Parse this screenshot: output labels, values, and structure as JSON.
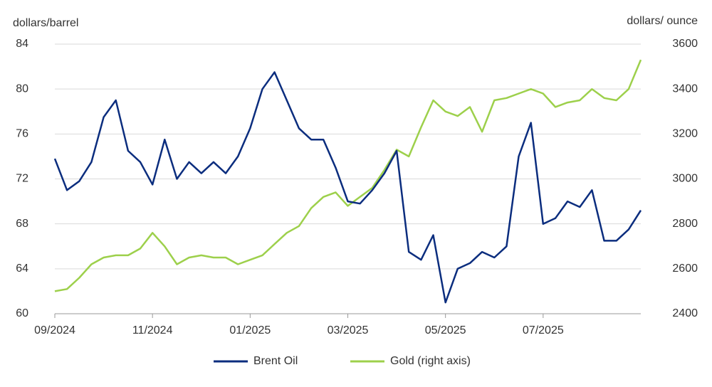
{
  "chart_data": {
    "type": "line",
    "y_label": "dollars/barrel",
    "y2_label": "dollars/ ounce",
    "categories": [
      "09/2024",
      null,
      null,
      null,
      null,
      null,
      null,
      null,
      "11/2024",
      null,
      null,
      null,
      null,
      null,
      null,
      null,
      "01/2025",
      null,
      null,
      null,
      null,
      null,
      null,
      null,
      "03/2025",
      null,
      null,
      null,
      null,
      null,
      null,
      null,
      "05/2025",
      null,
      null,
      null,
      null,
      null,
      null,
      null,
      "07/2025",
      null,
      null,
      null,
      null,
      null,
      null,
      null,
      null
    ],
    "series": [
      {
        "name": "Brent Oil",
        "color": "#0b2d7e",
        "axis": "y",
        "values": [
          73.8,
          71.0,
          71.8,
          73.5,
          77.5,
          79,
          74.5,
          73.5,
          71.5,
          75.5,
          72,
          73.5,
          72.5,
          73.5,
          72.5,
          74,
          76.5,
          80,
          81.5,
          79,
          76.5,
          75.5,
          75.5,
          73,
          70,
          69.8,
          71,
          72.5,
          74.5,
          65.5,
          64.8,
          67,
          61,
          64,
          64.5,
          65.5,
          65,
          66,
          74,
          77,
          68,
          68.5,
          70,
          69.5,
          71,
          66.5,
          66.5,
          67.5,
          69.2
        ]
      },
      {
        "name": "Gold (right axis)",
        "color": "#9dd04b",
        "axis": "y2",
        "values": [
          2500,
          2510,
          2560,
          2620,
          2650,
          2660,
          2660,
          2690,
          2760,
          2700,
          2620,
          2650,
          2660,
          2650,
          2650,
          2620,
          2640,
          2660,
          2710,
          2760,
          2790,
          2870,
          2920,
          2940,
          2880,
          2920,
          2960,
          3040,
          3130,
          3100,
          3230,
          3350,
          3300,
          3280,
          3320,
          3210,
          3350,
          3360,
          3380,
          3400,
          3380,
          3320,
          3340,
          3350,
          3400,
          3360,
          3350,
          3400,
          3530
        ]
      }
    ],
    "ylim": [
      60,
      84
    ],
    "yticks": [
      60,
      64,
      68,
      72,
      76,
      80,
      84
    ],
    "y2lim": [
      2400,
      3600
    ],
    "y2ticks": [
      2400,
      2600,
      2800,
      3000,
      3200,
      3400,
      3600
    ],
    "grid": true
  }
}
